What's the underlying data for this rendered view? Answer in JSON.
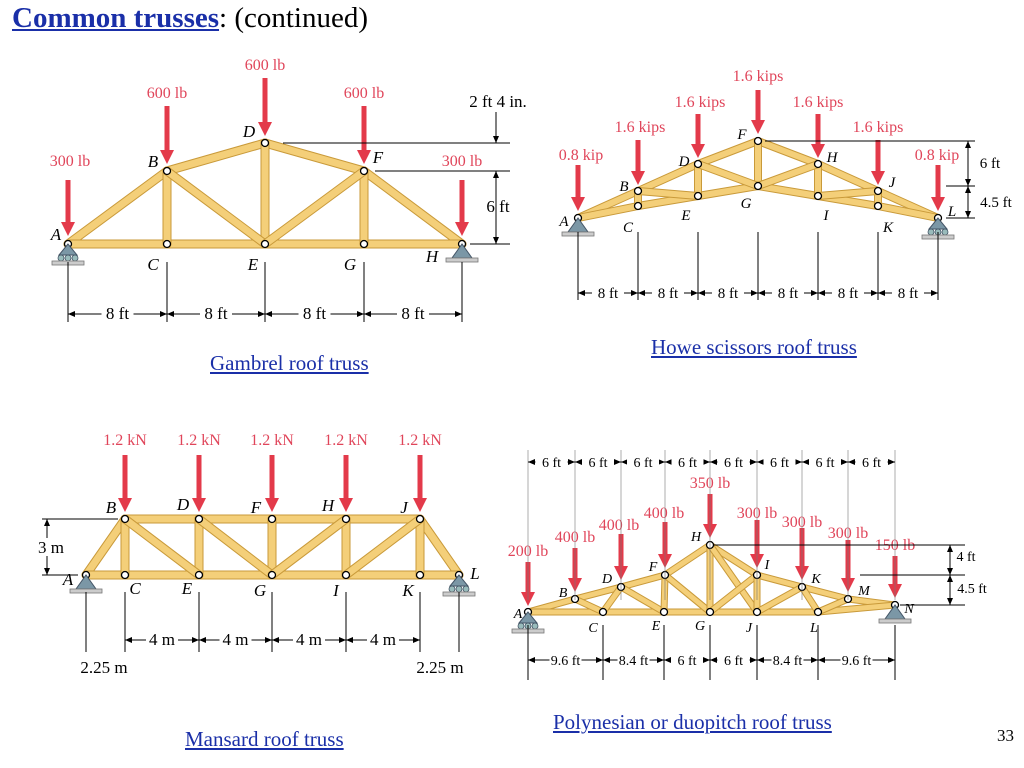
{
  "slide": {
    "title_main": "Common trusses",
    "title_rest": ": (continued)",
    "page_number": "33"
  },
  "colors": {
    "member_fill": "#f4cf79",
    "member_stroke": "#c99a3a",
    "load_arrow": "#e33a4a",
    "load_text": "#e0455a",
    "link_blue": "#1a2fa8",
    "support": "#7b97a6"
  },
  "gambrel": {
    "caption": "Gambrel roof truss",
    "nodes": [
      "A",
      "B",
      "C",
      "D",
      "E",
      "F",
      "G",
      "H"
    ],
    "loads": [
      "300 lb",
      "600 lb",
      "600 lb",
      "600 lb",
      "300 lb"
    ],
    "dims": [
      "2 ft 4 in.",
      "6 ft",
      "8 ft",
      "8 ft",
      "8 ft",
      "8 ft"
    ]
  },
  "howe": {
    "caption": "Howe scissors roof truss",
    "nodes": [
      "A",
      "B",
      "C",
      "D",
      "E",
      "F",
      "G",
      "H",
      "I",
      "J",
      "K",
      "L"
    ],
    "loads": [
      "0.8 kip",
      "1.6 kips",
      "1.6 kips",
      "1.6 kips",
      "1.6 kips",
      "1.6 kips",
      "0.8 kip"
    ],
    "dims": [
      "6 ft",
      "4.5 ft",
      "8 ft",
      "8 ft",
      "8 ft",
      "8 ft",
      "8 ft",
      "8 ft"
    ]
  },
  "mansard": {
    "caption": "Mansard roof truss",
    "nodes": [
      "A",
      "B",
      "C",
      "D",
      "E",
      "F",
      "G",
      "H",
      "I",
      "J",
      "K",
      "L"
    ],
    "loads": [
      "1.2 kN",
      "1.2 kN",
      "1.2 kN",
      "1.2 kN",
      "1.2 kN"
    ],
    "dims": [
      "3 m",
      "4 m",
      "4 m",
      "4 m",
      "4 m",
      "2.25 m",
      "2.25 m"
    ]
  },
  "polynesian": {
    "caption": "Polynesian or duopitch roof truss",
    "nodes": [
      "A",
      "B",
      "C",
      "D",
      "E",
      "F",
      "G",
      "H",
      "I",
      "J",
      "K",
      "L",
      "M",
      "N"
    ],
    "loads": [
      "200 lb",
      "400 lb",
      "400 lb",
      "400 lb",
      "350 lb",
      "300 lb",
      "300 lb",
      "300 lb",
      "150 lb"
    ],
    "top_dims": [
      "6 ft",
      "6 ft",
      "6 ft",
      "6 ft",
      "6 ft",
      "6 ft",
      "6 ft",
      "6 ft"
    ],
    "bottom_dims": [
      "9.6 ft",
      "8.4 ft",
      "6 ft",
      "6 ft",
      "8.4 ft",
      "9.6 ft"
    ],
    "side_dims": [
      "4 ft",
      "4.5 ft"
    ]
  }
}
